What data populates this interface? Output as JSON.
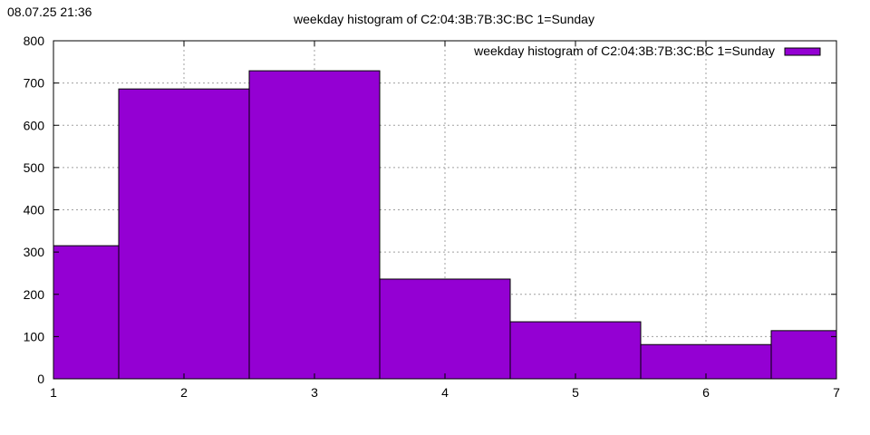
{
  "timestamp": "08.07.25 21:36",
  "chart_data": {
    "type": "bar",
    "title": "weekday histogram of C2:04:3B:7B:3C:BC 1=Sunday",
    "xlabel": "",
    "ylabel": "",
    "categories": [
      1,
      2,
      3,
      4,
      5,
      6,
      7
    ],
    "series": [
      {
        "name": "weekday histogram of C2:04:3B:7B:3C:BC 1=Sunday",
        "values": [
          315,
          686,
          729,
          236,
          135,
          81,
          114
        ],
        "color": "#9400d3"
      }
    ],
    "xlim": [
      1,
      7
    ],
    "ylim": [
      0,
      800
    ],
    "xticks": [
      1,
      2,
      3,
      4,
      5,
      6,
      7
    ],
    "yticks": [
      0,
      100,
      200,
      300,
      400,
      500,
      600,
      700,
      800
    ],
    "grid": true,
    "legend": "top-right"
  }
}
